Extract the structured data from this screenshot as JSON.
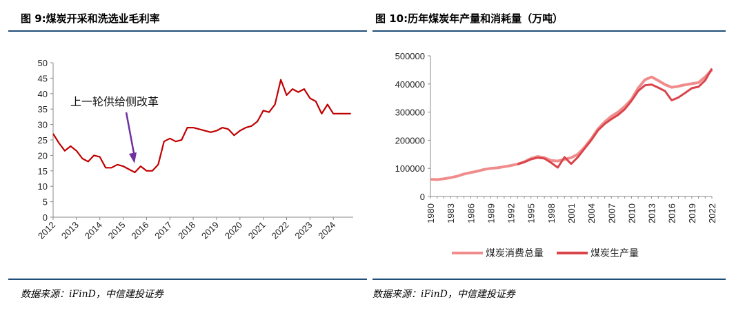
{
  "left": {
    "title": "图 9:煤炭开采和洗选业毛利率",
    "source": "数据来源：iFinD，中信建投证券"
  },
  "right": {
    "title": "图 10:历年煤炭年产量和消耗量（万吨）",
    "source": "数据来源：iFinD，中信建投证券"
  },
  "colors": {
    "rule": "#1f4e79",
    "margin_line": "#c00000",
    "arrow": "#7030a0",
    "consumption": "#f08c8c",
    "production": "#d9444b"
  },
  "chart_data": [
    {
      "type": "line",
      "title": "",
      "xlabel": "",
      "ylabel": "",
      "ylim": [
        0,
        50
      ],
      "yticks": [
        0,
        5,
        10,
        15,
        20,
        25,
        30,
        35,
        40,
        45,
        50
      ],
      "xticks": [
        "2012",
        "2013",
        "2014",
        "2015",
        "2016",
        "2017",
        "2018",
        "2019",
        "2020",
        "2021",
        "2022",
        "2023",
        "2024"
      ],
      "xlim": [
        2012.0,
        2024.85
      ],
      "annotation": "上一轮供给侧改革",
      "series": [
        {
          "x": [
            2012.0,
            2012.25,
            2012.5,
            2012.75,
            2013.0,
            2013.25,
            2013.5,
            2013.75,
            2014.0,
            2014.25,
            2014.5,
            2014.75,
            2015.0,
            2015.25,
            2015.5,
            2015.75,
            2016.0,
            2016.25,
            2016.5,
            2016.75,
            2017.0,
            2017.25,
            2017.5,
            2017.75,
            2018.0,
            2018.25,
            2018.5,
            2018.75,
            2019.0,
            2019.25,
            2019.5,
            2019.75,
            2020.0,
            2020.25,
            2020.5,
            2020.75,
            2021.0,
            2021.25,
            2021.5,
            2021.75,
            2022.0,
            2022.25,
            2022.5,
            2022.75,
            2023.0,
            2023.25,
            2023.5,
            2023.75,
            2024.0,
            2024.25,
            2024.5,
            2024.75
          ],
          "values": [
            27,
            24,
            21.5,
            23,
            21.5,
            19,
            18,
            20,
            19.5,
            16,
            16,
            17,
            16.5,
            15.5,
            14.5,
            16.5,
            15,
            15,
            17,
            24.5,
            25.5,
            24.5,
            25,
            29,
            29,
            28.5,
            28,
            27.5,
            28,
            29,
            28.5,
            26.5,
            28,
            29,
            29.5,
            31,
            34.5,
            34,
            36.5,
            44.5,
            39.5,
            41.5,
            40.5,
            41.5,
            38.5,
            37.5,
            33.5,
            36.5,
            33.5,
            33.5,
            33.5,
            33.5
          ]
        }
      ]
    },
    {
      "type": "line",
      "title": "",
      "xlabel": "",
      "ylabel": "",
      "ylim": [
        0,
        500000
      ],
      "yticks": [
        0,
        100000,
        200000,
        300000,
        400000,
        500000
      ],
      "xticks": [
        "1980",
        "1983",
        "1986",
        "1989",
        "1992",
        "1995",
        "1998",
        "2001",
        "2004",
        "2007",
        "2010",
        "2013",
        "2016",
        "2019",
        "2022"
      ],
      "x": [
        1980,
        1981,
        1982,
        1983,
        1984,
        1985,
        1986,
        1987,
        1988,
        1989,
        1990,
        1991,
        1992,
        1993,
        1994,
        1995,
        1996,
        1997,
        1998,
        1999,
        2000,
        2001,
        2002,
        2003,
        2004,
        2005,
        2006,
        2007,
        2008,
        2009,
        2010,
        2011,
        2012,
        2013,
        2014,
        2015,
        2016,
        2017,
        2018,
        2019,
        2020,
        2021,
        2022
      ],
      "series": [
        {
          "name": "煤炭消费总量",
          "values": [
            61000,
            60000,
            63000,
            67000,
            72000,
            80000,
            85000,
            90000,
            96000,
            100000,
            102000,
            106000,
            110000,
            115000,
            123000,
            135000,
            142000,
            138000,
            128000,
            126000,
            132000,
            138000,
            150000,
            175000,
            205000,
            240000,
            265000,
            285000,
            300000,
            320000,
            345000,
            385000,
            415000,
            425000,
            412000,
            398000,
            388000,
            392000,
            397000,
            401000,
            405000,
            425000,
            450000
          ]
        },
        {
          "name": "煤炭生产量",
          "values": [
            null,
            null,
            null,
            null,
            null,
            null,
            null,
            null,
            null,
            null,
            null,
            null,
            null,
            115000,
            122000,
            132000,
            138000,
            135000,
            120000,
            103000,
            140000,
            116000,
            140000,
            170000,
            200000,
            235000,
            258000,
            275000,
            290000,
            310000,
            340000,
            375000,
            395000,
            398000,
            387000,
            375000,
            342000,
            352000,
            368000,
            385000,
            390000,
            413000,
            455000
          ]
        }
      ],
      "legend_position": "bottom"
    }
  ]
}
